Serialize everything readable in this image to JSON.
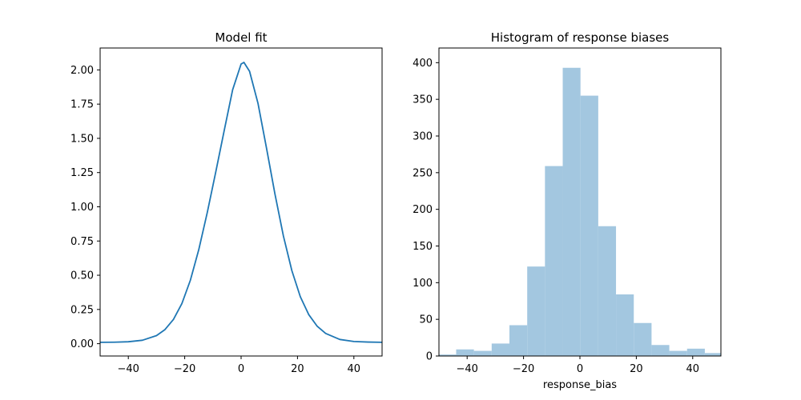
{
  "chart_data": [
    {
      "type": "line",
      "title": "Model fit",
      "xlabel": "",
      "ylabel": "",
      "xlim": [
        -50,
        50
      ],
      "ylim": [
        -0.09,
        2.16
      ],
      "grid": false,
      "xticks": [
        -40,
        -20,
        0,
        20,
        40
      ],
      "xtick_labels": [
        "−40",
        "−20",
        "0",
        "20",
        "40"
      ],
      "yticks": [
        0,
        0.25,
        0.5,
        0.75,
        1.0,
        1.25,
        1.5,
        1.75,
        2.0
      ],
      "ytick_labels": [
        "0.00",
        "0.25",
        "0.50",
        "0.75",
        "1.00",
        "1.25",
        "1.50",
        "1.75",
        "2.00"
      ],
      "color": "#1f77b4",
      "x": [
        -50,
        -45,
        -40,
        -35,
        -30,
        -27,
        -24,
        -21,
        -18,
        -15,
        -12,
        -9,
        -6,
        -3,
        0,
        1,
        3,
        6,
        9,
        12,
        15,
        18,
        21,
        24,
        27,
        30,
        35,
        40,
        45,
        50
      ],
      "y": [
        0.01,
        0.011,
        0.014,
        0.025,
        0.059,
        0.103,
        0.177,
        0.293,
        0.463,
        0.688,
        0.958,
        1.253,
        1.556,
        1.855,
        2.043,
        2.055,
        1.99,
        1.755,
        1.43,
        1.094,
        0.787,
        0.534,
        0.343,
        0.212,
        0.127,
        0.075,
        0.031,
        0.016,
        0.012,
        0.01
      ]
    },
    {
      "type": "bar",
      "title": "Histogram of response biases",
      "xlabel": "response_bias",
      "ylabel": "",
      "xlim": [
        -50,
        50
      ],
      "ylim": [
        0,
        420
      ],
      "grid": false,
      "xticks": [
        -40,
        -20,
        0,
        20,
        40
      ],
      "xtick_labels": [
        "−40",
        "−20",
        "0",
        "20",
        "40"
      ],
      "yticks": [
        0,
        50,
        100,
        150,
        200,
        250,
        300,
        350,
        400
      ],
      "ytick_labels": [
        "0",
        "50",
        "100",
        "150",
        "200",
        "250",
        "300",
        "350",
        "400"
      ],
      "color": "#a3c7e0",
      "bin_edges": [
        -50.2,
        -43.9,
        -37.6,
        -31.3,
        -25.0,
        -18.7,
        -12.4,
        -6.1,
        0.2,
        6.5,
        12.8,
        19.1,
        25.4,
        31.7,
        38.0,
        44.3,
        50.6
      ],
      "counts": [
        2,
        9,
        7,
        17,
        42,
        122,
        259,
        393,
        355,
        177,
        84,
        45,
        15,
        7,
        10,
        4
      ]
    }
  ]
}
